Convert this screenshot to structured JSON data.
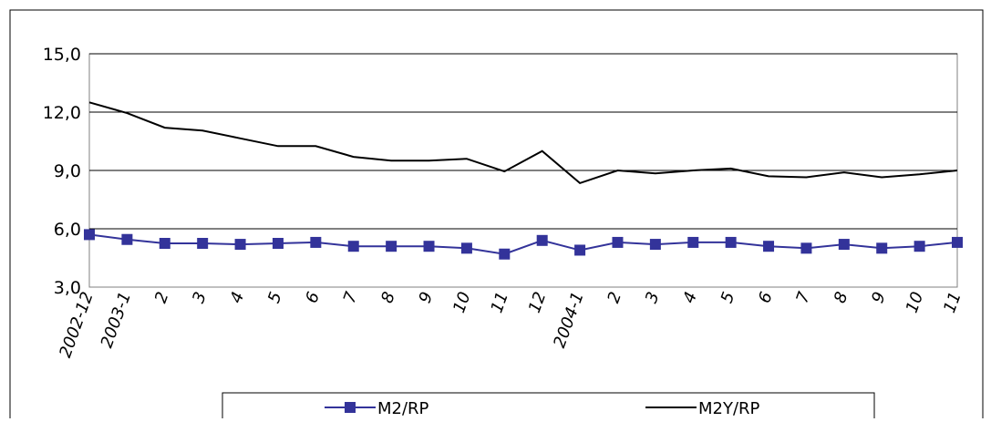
{
  "chart_data": {
    "type": "line",
    "categories": [
      "2002-12",
      "2003-1",
      "2",
      "3",
      "4",
      "5",
      "6",
      "7",
      "8",
      "9",
      "10",
      "11",
      "12",
      "2004-1",
      "2",
      "3",
      "4",
      "5",
      "6",
      "7",
      "8",
      "9",
      "10",
      "11"
    ],
    "yticks": [
      "3,0",
      "6,0",
      "9,0",
      "12,0",
      "15,0"
    ],
    "ytick_values": [
      3,
      6,
      9,
      12,
      15
    ],
    "ylim": [
      3,
      15
    ],
    "grid": "horizontal",
    "legend_position": "bottom",
    "colors": {
      "m2": "#33339a",
      "m2y": "#000000",
      "grid": "#000000",
      "plot_border": "#808080"
    },
    "series": [
      {
        "name": "M2/RP",
        "key": "m2",
        "marker": "square",
        "values": [
          5.7,
          5.45,
          5.25,
          5.25,
          5.2,
          5.25,
          5.3,
          5.1,
          5.1,
          5.1,
          5.0,
          4.7,
          5.4,
          4.9,
          5.3,
          5.2,
          5.3,
          5.3,
          5.1,
          5.0,
          5.2,
          5.0,
          5.1,
          5.3
        ]
      },
      {
        "name": "M2Y/RP",
        "key": "m2y",
        "marker": "none",
        "values": [
          12.5,
          11.95,
          11.2,
          11.05,
          10.65,
          10.25,
          10.25,
          9.7,
          9.5,
          9.5,
          9.6,
          8.95,
          10.0,
          8.35,
          9.0,
          8.85,
          9.0,
          9.1,
          8.7,
          8.65,
          8.9,
          8.65,
          8.8,
          9.0
        ]
      }
    ]
  }
}
